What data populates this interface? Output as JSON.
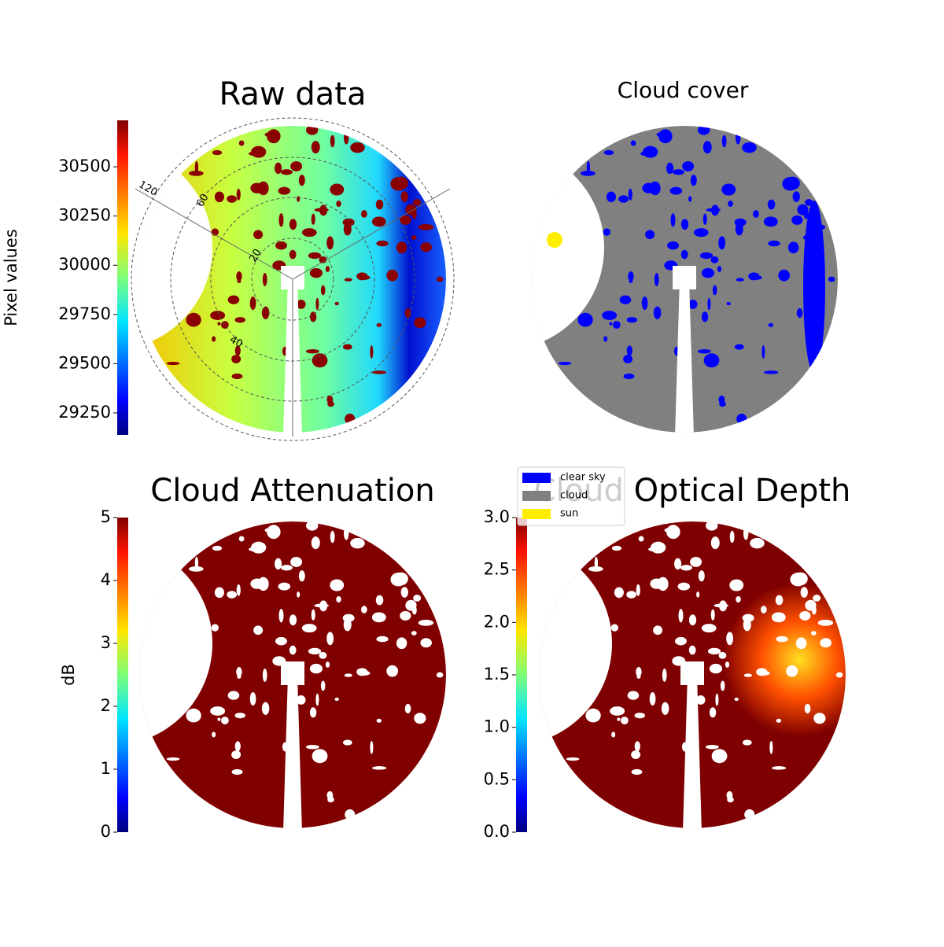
{
  "chart_data": [
    {
      "type": "image",
      "title": "Raw data",
      "colormap": "jet",
      "colorbar": {
        "label": "Pixel values",
        "lim": [
          29138,
          30736
        ],
        "ticks": [
          29250,
          29500,
          29750,
          30000,
          30250,
          30500
        ]
      },
      "annotations": [
        "120",
        "60",
        "20",
        "40"
      ]
    },
    {
      "type": "image",
      "title": "Cloud cover",
      "series": [
        {
          "name": "clear sky",
          "color": "#0000ff"
        },
        {
          "name": "cloud",
          "color": "#808080"
        },
        {
          "name": "sun",
          "color": "#ffee00"
        }
      ]
    },
    {
      "type": "image",
      "title": "Cloud Attenuation",
      "colormap": "jet",
      "colorbar": {
        "label": "dB",
        "lim": [
          0,
          5
        ],
        "ticks": [
          0,
          1,
          2,
          3,
          4,
          5
        ]
      }
    },
    {
      "type": "image",
      "title": "Cloud Optical Depth",
      "colormap": "jet",
      "colorbar": {
        "lim": [
          0,
          3
        ],
        "ticks": [
          {
            "value": 0,
            "label": "0.0"
          },
          {
            "value": 0.5,
            "label": "0.5"
          },
          {
            "value": 1,
            "label": "1.0"
          },
          {
            "value": 1.5,
            "label": "1.5"
          },
          {
            "value": 2,
            "label": "2.0"
          },
          {
            "value": 2.5,
            "label": "2.5"
          },
          {
            "value": 3,
            "label": "3.0"
          }
        ]
      }
    }
  ]
}
